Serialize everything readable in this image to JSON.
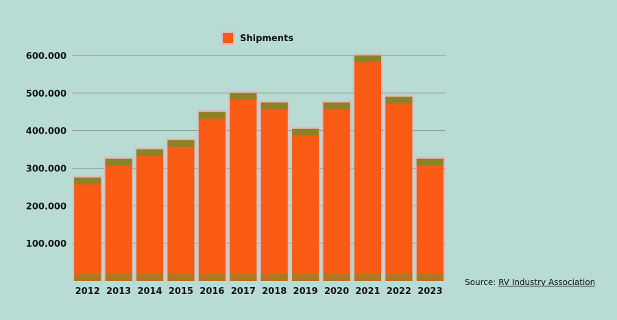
{
  "chart_data": {
    "type": "bar",
    "categories": [
      "2012",
      "2013",
      "2014",
      "2015",
      "2016",
      "2017",
      "2018",
      "2019",
      "2020",
      "2021",
      "2022",
      "2023"
    ],
    "series": [
      {
        "name": "Shipments",
        "values": [
          275000,
          325000,
          350000,
          375000,
          450000,
          500000,
          475000,
          405000,
          475000,
          600000,
          490000,
          325000
        ]
      }
    ],
    "ylim": [
      0,
      600000
    ],
    "yticks": [
      100000,
      200000,
      300000,
      400000,
      500000,
      600000
    ],
    "ytick_labels": [
      "100.000",
      "200.000",
      "300.000",
      "400.000",
      "500.000",
      "600.000"
    ],
    "legend_position": "top-center",
    "grid": true,
    "colors": {
      "bar": "#fa5b14",
      "bar_top": "#7a8a2a",
      "grid": "#8a9a94",
      "background": "#b8dbd3"
    }
  },
  "source": {
    "prefix": "Source: ",
    "link_text": "RV Industry Association"
  }
}
